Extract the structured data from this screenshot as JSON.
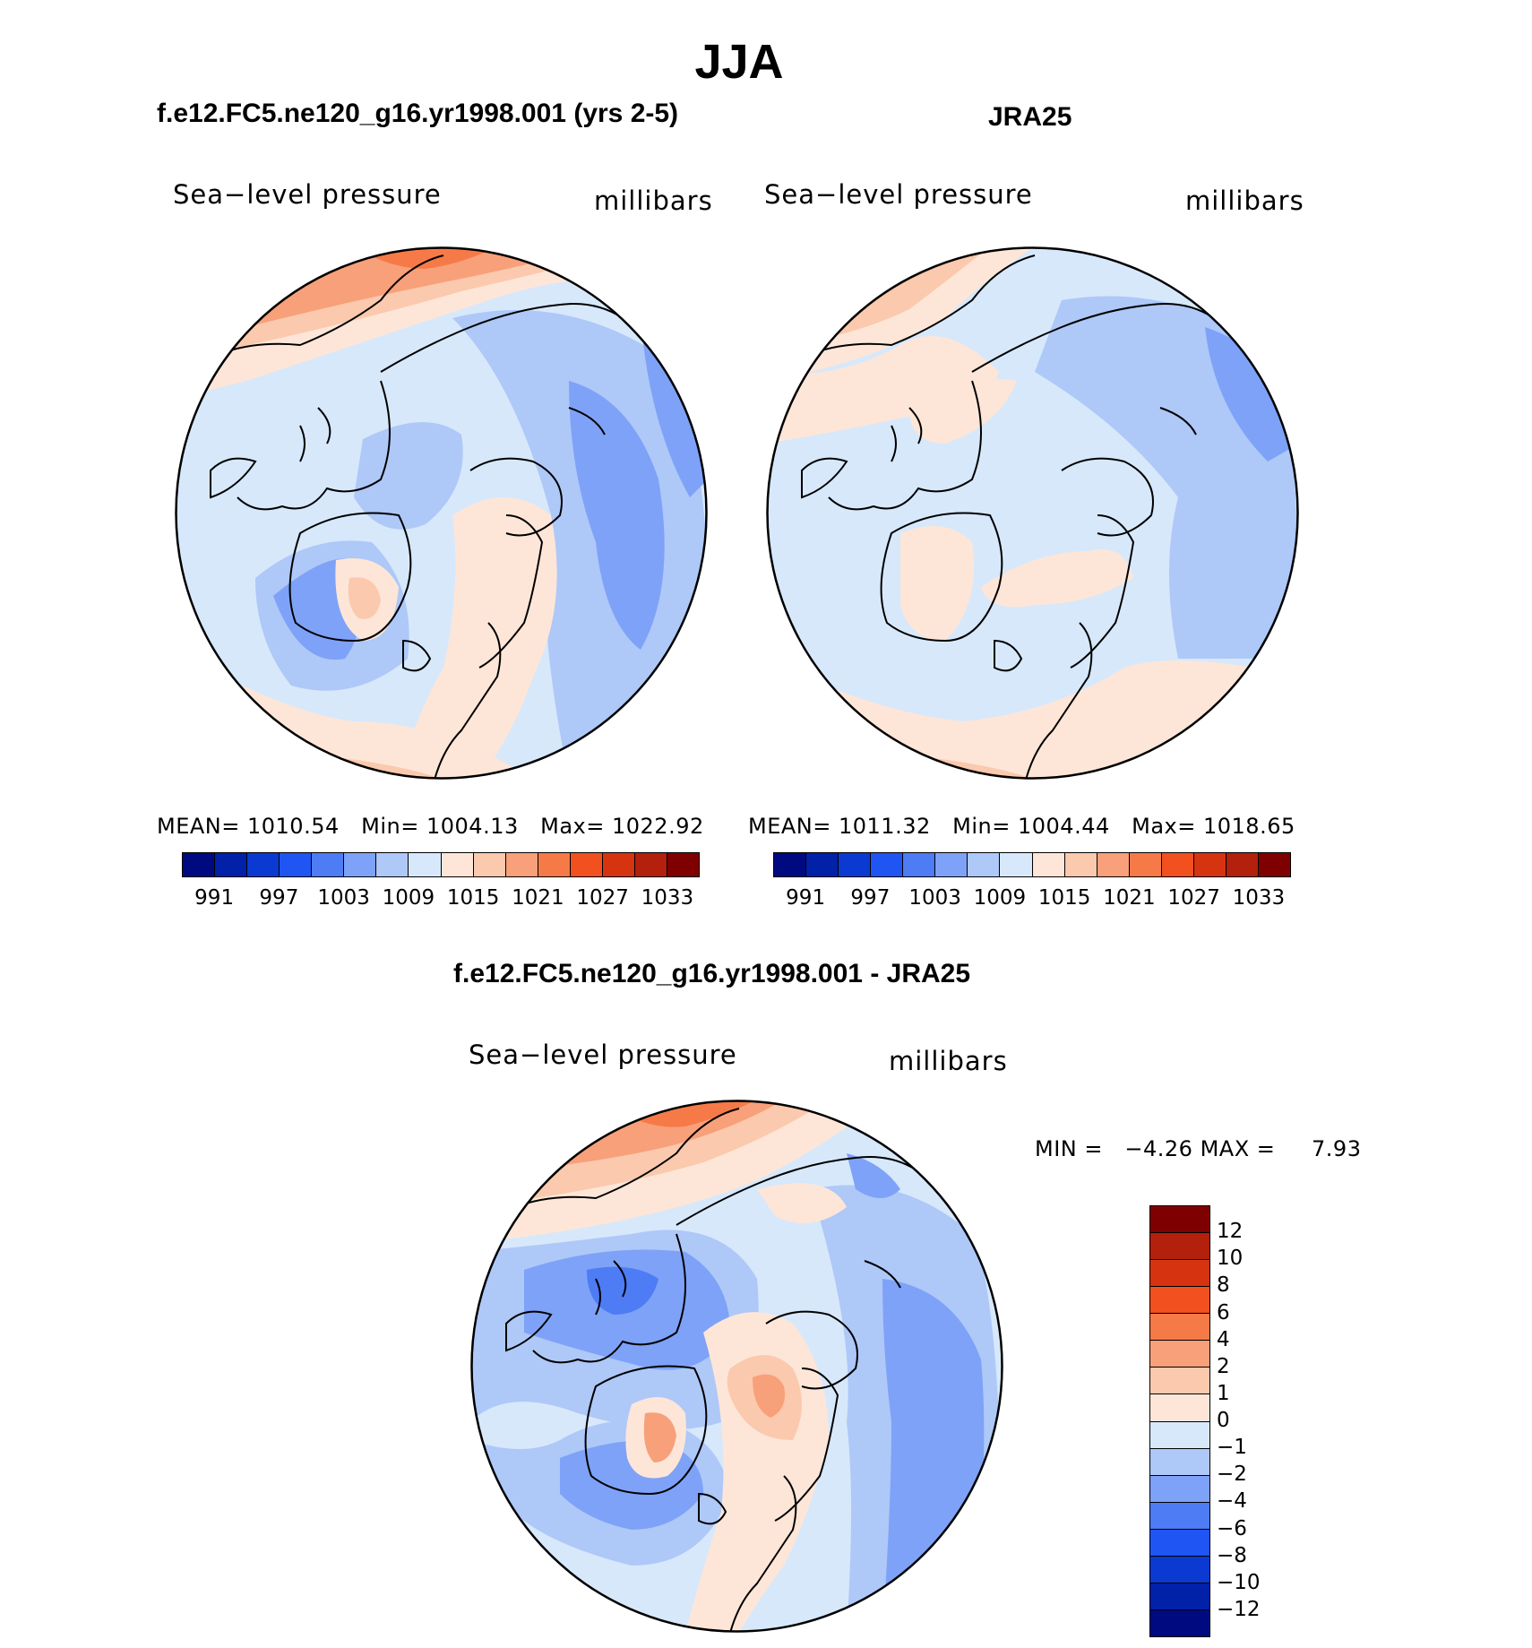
{
  "title": "JJA",
  "panels": [
    {
      "id": "model",
      "title": "f.e12.FC5.ne120_g16.yr1998.001 (yrs 2-5)",
      "field": "Sea−level pressure",
      "units": "millibars",
      "stats": {
        "mean_label": "MEAN=",
        "mean": "1010.54",
        "min_label": "Min=",
        "min": "1004.13",
        "max_label": "Max=",
        "max": "1022.92"
      }
    },
    {
      "id": "obs",
      "title": "JRA25",
      "field": "Sea−level pressure",
      "units": "millibars",
      "stats": {
        "mean_label": "MEAN=",
        "mean": "1011.32",
        "min_label": "Min=",
        "min": "1004.44",
        "max_label": "Max=",
        "max": "1018.65"
      }
    },
    {
      "id": "diff",
      "title": "f.e12.FC5.ne120_g16.yr1998.001 - JRA25",
      "field": "Sea−level pressure",
      "units": "millibars",
      "stats": {
        "min_label": "MIN =",
        "min": "−4.26",
        "max_label": "MAX =",
        "max": "7.93"
      }
    }
  ],
  "abs_colorbar": {
    "colors": [
      "#000a80",
      "#0021a8",
      "#0a3ad1",
      "#1f55f2",
      "#4e7cf5",
      "#7ea2f7",
      "#aec8f8",
      "#d7e8fb",
      "#fde6d8",
      "#fbc9ad",
      "#f8a07a",
      "#f67a48",
      "#f2501f",
      "#d63410",
      "#b3200c",
      "#7f0000"
    ],
    "tick_labels": [
      "991",
      "997",
      "1003",
      "1009",
      "1015",
      "1021",
      "1027",
      "1033"
    ]
  },
  "diff_colorbar": {
    "colors": [
      "#7f0000",
      "#b3200c",
      "#d63410",
      "#f2501f",
      "#f67a48",
      "#f8a07a",
      "#fbc9ad",
      "#fde6d8",
      "#d7e8fb",
      "#aec8f8",
      "#7ea2f7",
      "#4e7cf5",
      "#1f55f2",
      "#0a3ad1",
      "#0021a8",
      "#000a80"
    ],
    "tick_labels": [
      "12",
      "10",
      "8",
      "6",
      "4",
      "2",
      "1",
      "0",
      "−1",
      "−2",
      "−4",
      "−6",
      "−8",
      "−10",
      "−12"
    ]
  }
}
